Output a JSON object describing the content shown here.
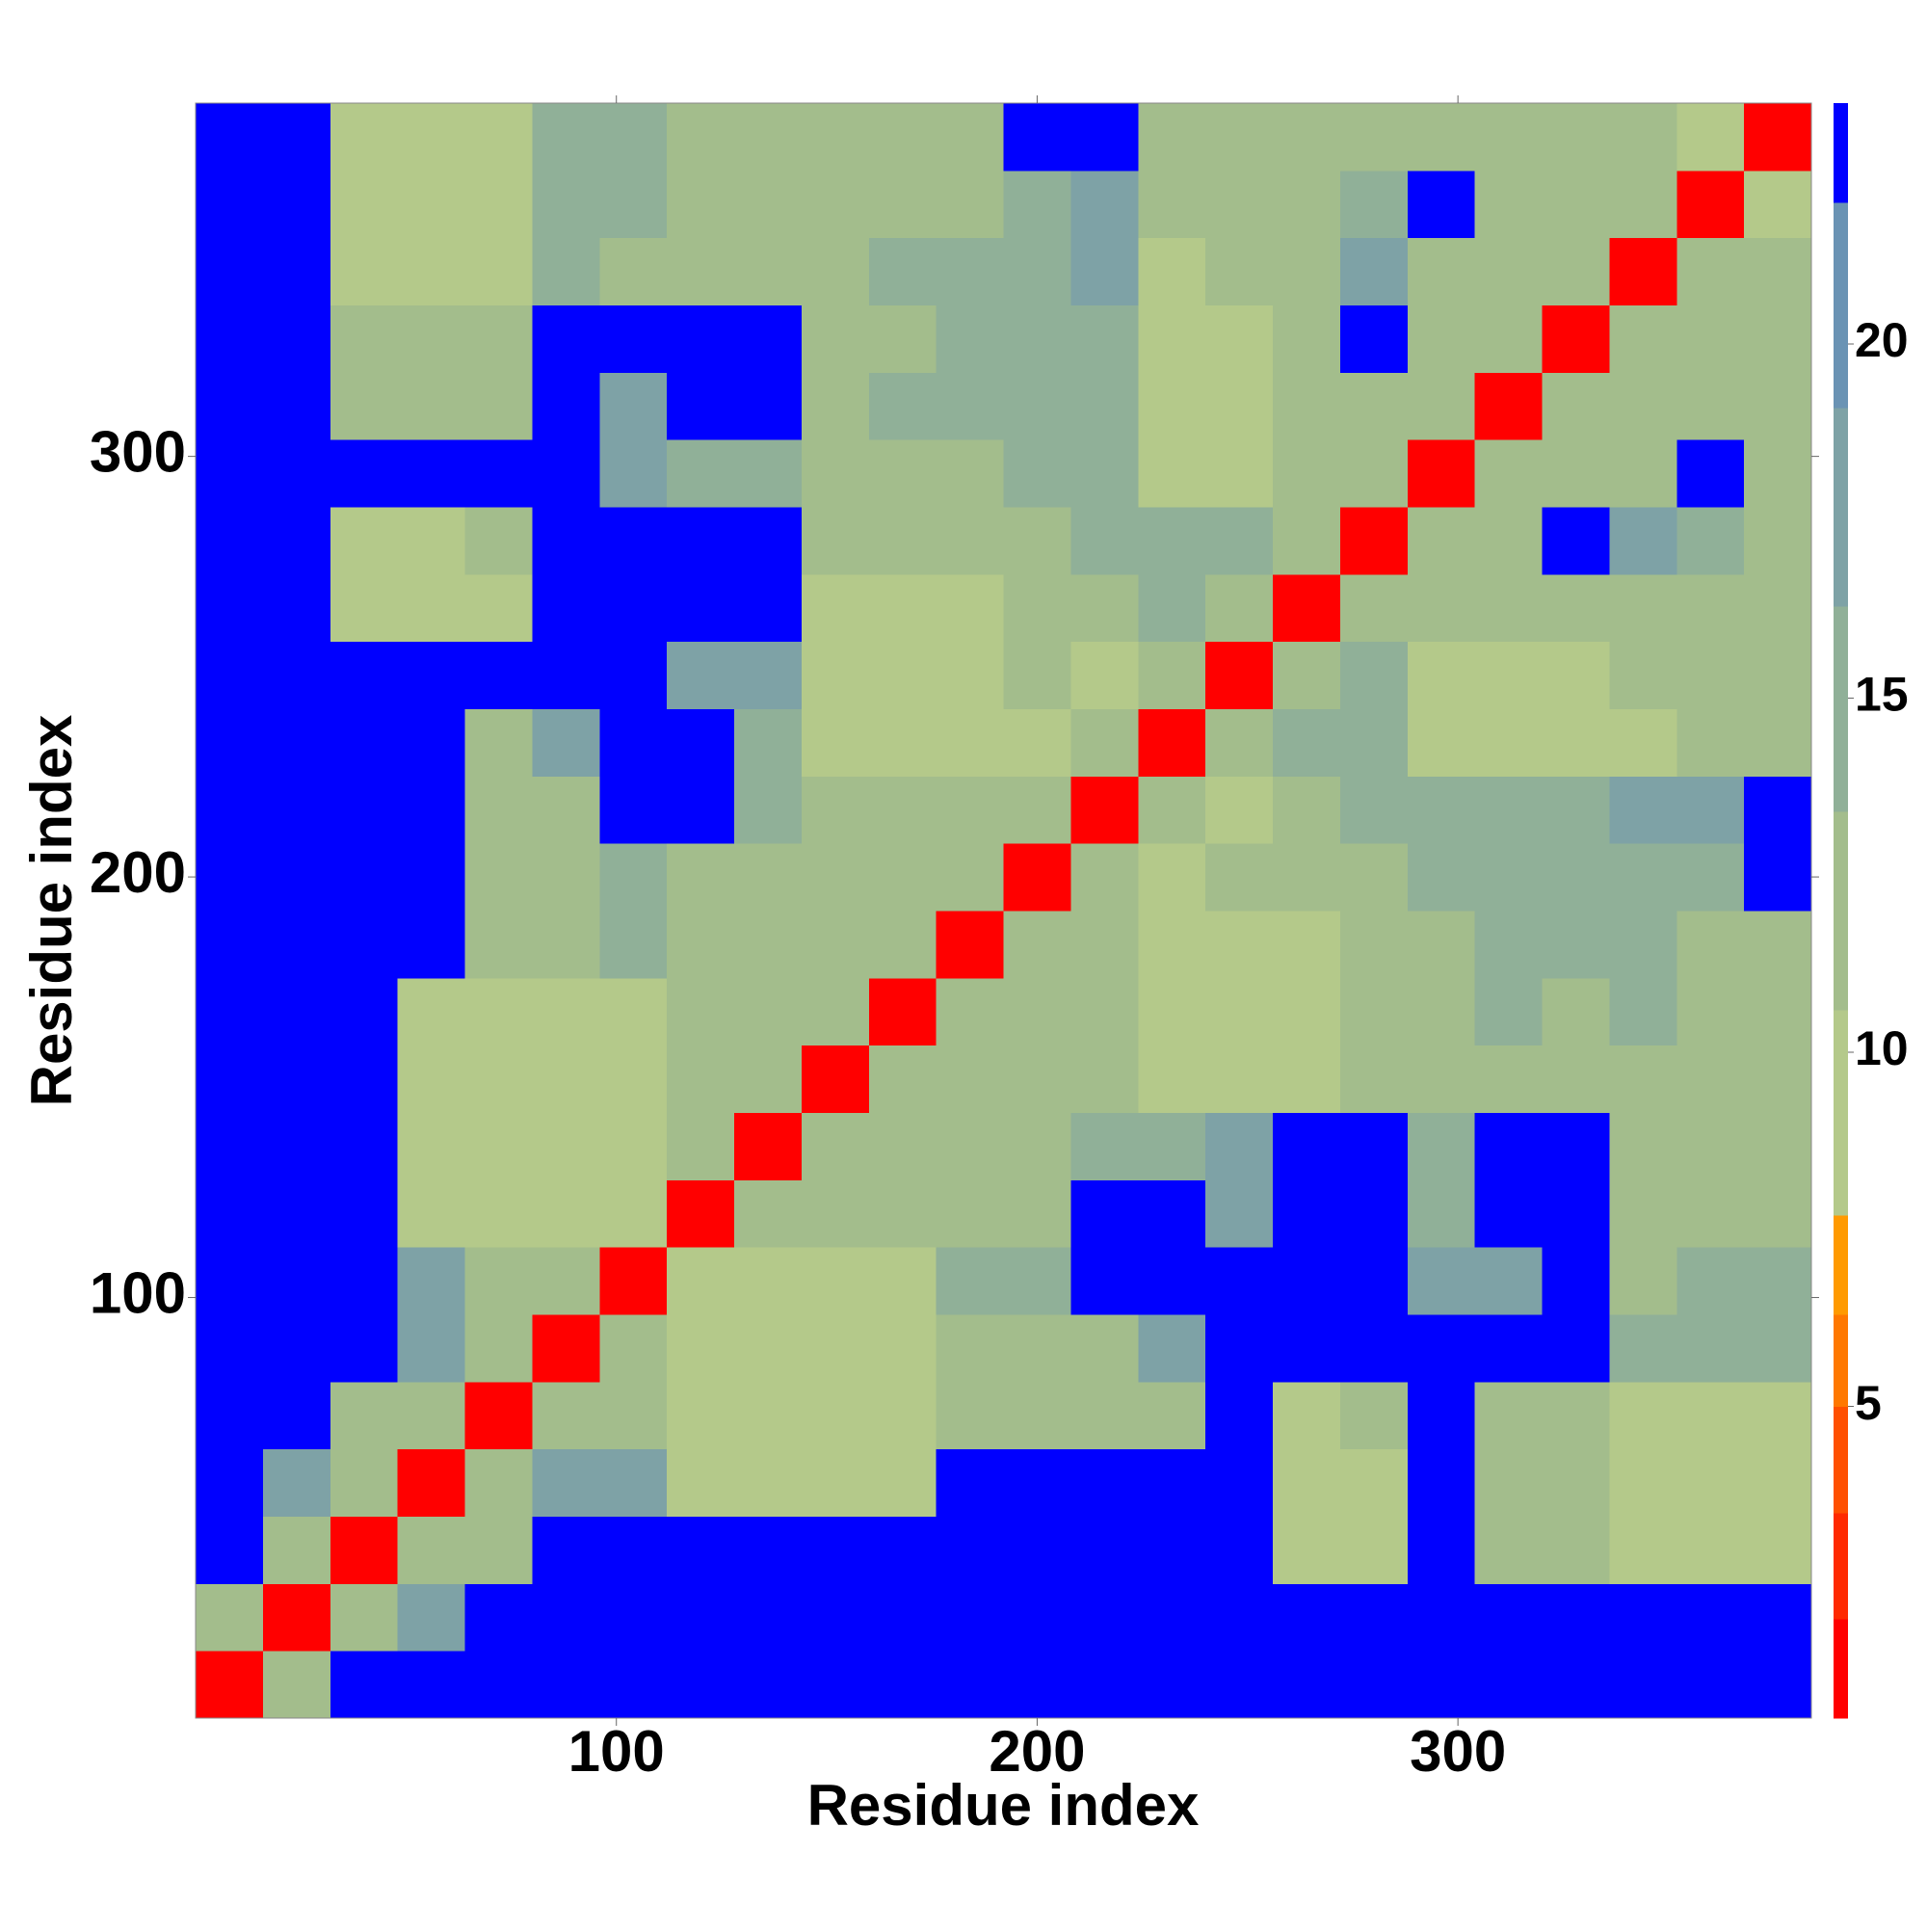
{
  "chart_data": {
    "type": "heatmap",
    "x_label": "Residue index",
    "y_label": "Residue index",
    "xlim": [
      0,
      384
    ],
    "ylim": [
      0,
      384
    ],
    "xticks": [
      100,
      200,
      300
    ],
    "yticks": [
      100,
      200,
      300
    ],
    "z": [
      [
        1
      ],
      [
        12,
        1
      ],
      [
        23,
        12,
        1
      ],
      [
        23,
        18,
        12,
        1
      ],
      [
        23,
        23,
        12,
        12,
        1
      ],
      [
        23,
        23,
        23,
        18,
        12,
        1
      ],
      [
        23,
        23,
        23,
        18,
        12,
        12,
        1
      ],
      [
        23,
        23,
        23,
        10,
        10,
        10,
        10,
        1
      ],
      [
        23,
        23,
        23,
        10,
        10,
        10,
        10,
        12,
        1
      ],
      [
        23,
        23,
        23,
        10,
        10,
        10,
        10,
        12,
        12,
        1
      ],
      [
        23,
        23,
        23,
        10,
        10,
        10,
        10,
        12,
        12,
        12,
        1
      ],
      [
        23,
        23,
        23,
        23,
        12,
        12,
        16,
        12,
        12,
        12,
        12,
        1
      ],
      [
        23,
        23,
        23,
        23,
        12,
        12,
        16,
        12,
        12,
        12,
        12,
        12,
        1
      ],
      [
        23,
        23,
        23,
        23,
        12,
        12,
        23,
        23,
        16,
        12,
        12,
        12,
        12,
        1
      ],
      [
        23,
        23,
        23,
        23,
        12,
        18,
        23,
        23,
        16,
        10,
        10,
        10,
        10,
        12,
        1
      ],
      [
        23,
        23,
        23,
        23,
        23,
        23,
        23,
        18,
        18,
        10,
        10,
        10,
        12,
        10,
        12,
        1
      ],
      [
        23,
        23,
        10,
        10,
        10,
        23,
        23,
        23,
        23,
        10,
        10,
        10,
        12,
        12,
        14,
        12,
        1
      ],
      [
        23,
        23,
        10,
        10,
        12,
        23,
        23,
        23,
        23,
        12,
        12,
        12,
        12,
        14,
        14,
        14,
        12,
        1
      ],
      [
        23,
        23,
        23,
        23,
        23,
        23,
        18,
        16,
        16,
        12,
        12,
        12,
        16,
        14,
        10,
        10,
        12,
        12,
        1
      ],
      [
        23,
        23,
        12,
        12,
        12,
        23,
        18,
        23,
        23,
        12,
        16,
        16,
        16,
        14,
        10,
        10,
        12,
        12,
        12,
        1
      ],
      [
        23,
        23,
        12,
        12,
        12,
        23,
        23,
        23,
        23,
        12,
        12,
        16,
        16,
        14,
        10,
        10,
        12,
        23,
        12,
        12,
        1
      ],
      [
        23,
        23,
        10,
        10,
        10,
        14,
        12,
        12,
        12,
        12,
        16,
        16,
        16,
        18,
        10,
        12,
        12,
        18,
        12,
        12,
        12,
        1
      ],
      [
        23,
        23,
        10,
        10,
        10,
        14,
        14,
        12,
        12,
        12,
        12,
        12,
        16,
        18,
        12,
        12,
        12,
        16,
        23,
        12,
        12,
        12,
        1
      ],
      [
        23,
        23,
        10,
        10,
        10,
        14,
        14,
        12,
        12,
        12,
        12,
        12,
        23,
        23,
        12,
        12,
        12,
        12,
        12,
        12,
        12,
        12,
        10,
        1
      ]
    ],
    "colorbar": {
      "levels": [
        0.6,
        2,
        3.5,
        5,
        6.3,
        7.7,
        10.6,
        13.4,
        16.3,
        19.1,
        22,
        23.4
      ],
      "colors": [
        "#ff0000",
        "#ff2a00",
        "#ff5000",
        "#ff7800",
        "#ff9a00",
        "#b4c98a",
        "#a3bd8c",
        "#90b098",
        "#7ea2a6",
        "#6a93b4",
        "#0000ff"
      ],
      "ticks": [
        5,
        10,
        15,
        20
      ]
    }
  }
}
